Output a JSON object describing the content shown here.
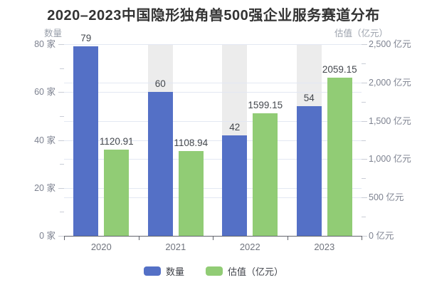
{
  "chart_data": {
    "type": "bar",
    "title": "2020–2023中国隐形独角兽500强企业服务赛道分布",
    "categories": [
      "2020",
      "2021",
      "2022",
      "2023"
    ],
    "series": [
      {
        "name": "数量",
        "data_name": "count",
        "axis": "left",
        "color": "#5470c6",
        "values": [
          79,
          60,
          42,
          54
        ],
        "labels": [
          "79",
          "60",
          "42",
          "54"
        ]
      },
      {
        "name": "估值（亿元）",
        "data_name": "valuation",
        "axis": "right",
        "color": "#91cc75",
        "values": [
          1120.91,
          1108.94,
          1599.15,
          2059.15
        ],
        "labels": [
          "1120.91",
          "1108.94",
          "1599.15",
          "2059.15"
        ]
      }
    ],
    "left_axis": {
      "name": "数量",
      "unit": "家",
      "min": 0,
      "max": 80,
      "tick_step": 20,
      "ticks": [
        "0 家",
        "20 家",
        "40 家",
        "60 家",
        "80 家"
      ]
    },
    "right_axis": {
      "name": "估值（亿元）",
      "unit": "亿元",
      "min": 0,
      "max": 2500,
      "tick_step": 500,
      "ticks": [
        "0 亿元",
        "500 亿元",
        "1,000 亿元",
        "1,500 亿元",
        "2,000 亿元",
        "2,500 亿元"
      ]
    },
    "legend": {
      "position": "bottom",
      "items": [
        {
          "label": "数量",
          "color": "#5470c6",
          "data_name": "count"
        },
        {
          "label": "估值（亿元）",
          "color": "#91cc75",
          "data_name": "valuation"
        }
      ]
    },
    "layout": {
      "grid": "horizontal gridlines for both axes",
      "highlight_band_categories": [
        "2021",
        "2022",
        "2023"
      ],
      "band_color": "#ececec",
      "gridline_color": "#e3e8f3",
      "axis_line_color": "#62656d",
      "legend_position": "bottom-center"
    },
    "colors": {
      "count_bar": "#5470c6",
      "valuation_bar": "#91cc75",
      "title_text": "#333333",
      "tick_label_text": "#7d8290",
      "axis_name_text": "#9aa0ab",
      "data_label_text": "#44484e",
      "background": "#ffffff"
    }
  }
}
